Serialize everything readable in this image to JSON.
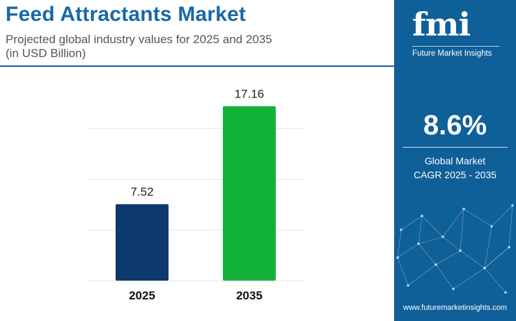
{
  "header": {
    "title": "Feed Attractants Market",
    "subtitle_line1": "Projected global industry values for 2025 and 2035",
    "subtitle_line2": "(in USD Billion)"
  },
  "brand": {
    "logo_text": "fmi",
    "tagline": "Future Market Insights",
    "url": "www.futuremarketinsights.com",
    "panel_color": "#0f5f99"
  },
  "cagr": {
    "value": "8.6%",
    "label_line1": "Global Market",
    "label_line2": "CAGR 2025 - 2035"
  },
  "chart_data": {
    "type": "bar",
    "categories": [
      "2025",
      "2035"
    ],
    "values": [
      7.52,
      17.16
    ],
    "value_labels": [
      "7.52",
      "17.16"
    ],
    "colors": [
      "#0c3a6e",
      "#12b23a"
    ],
    "ylim": [
      0,
      20
    ],
    "grid": true,
    "title": "",
    "xlabel": "",
    "ylabel": ""
  }
}
